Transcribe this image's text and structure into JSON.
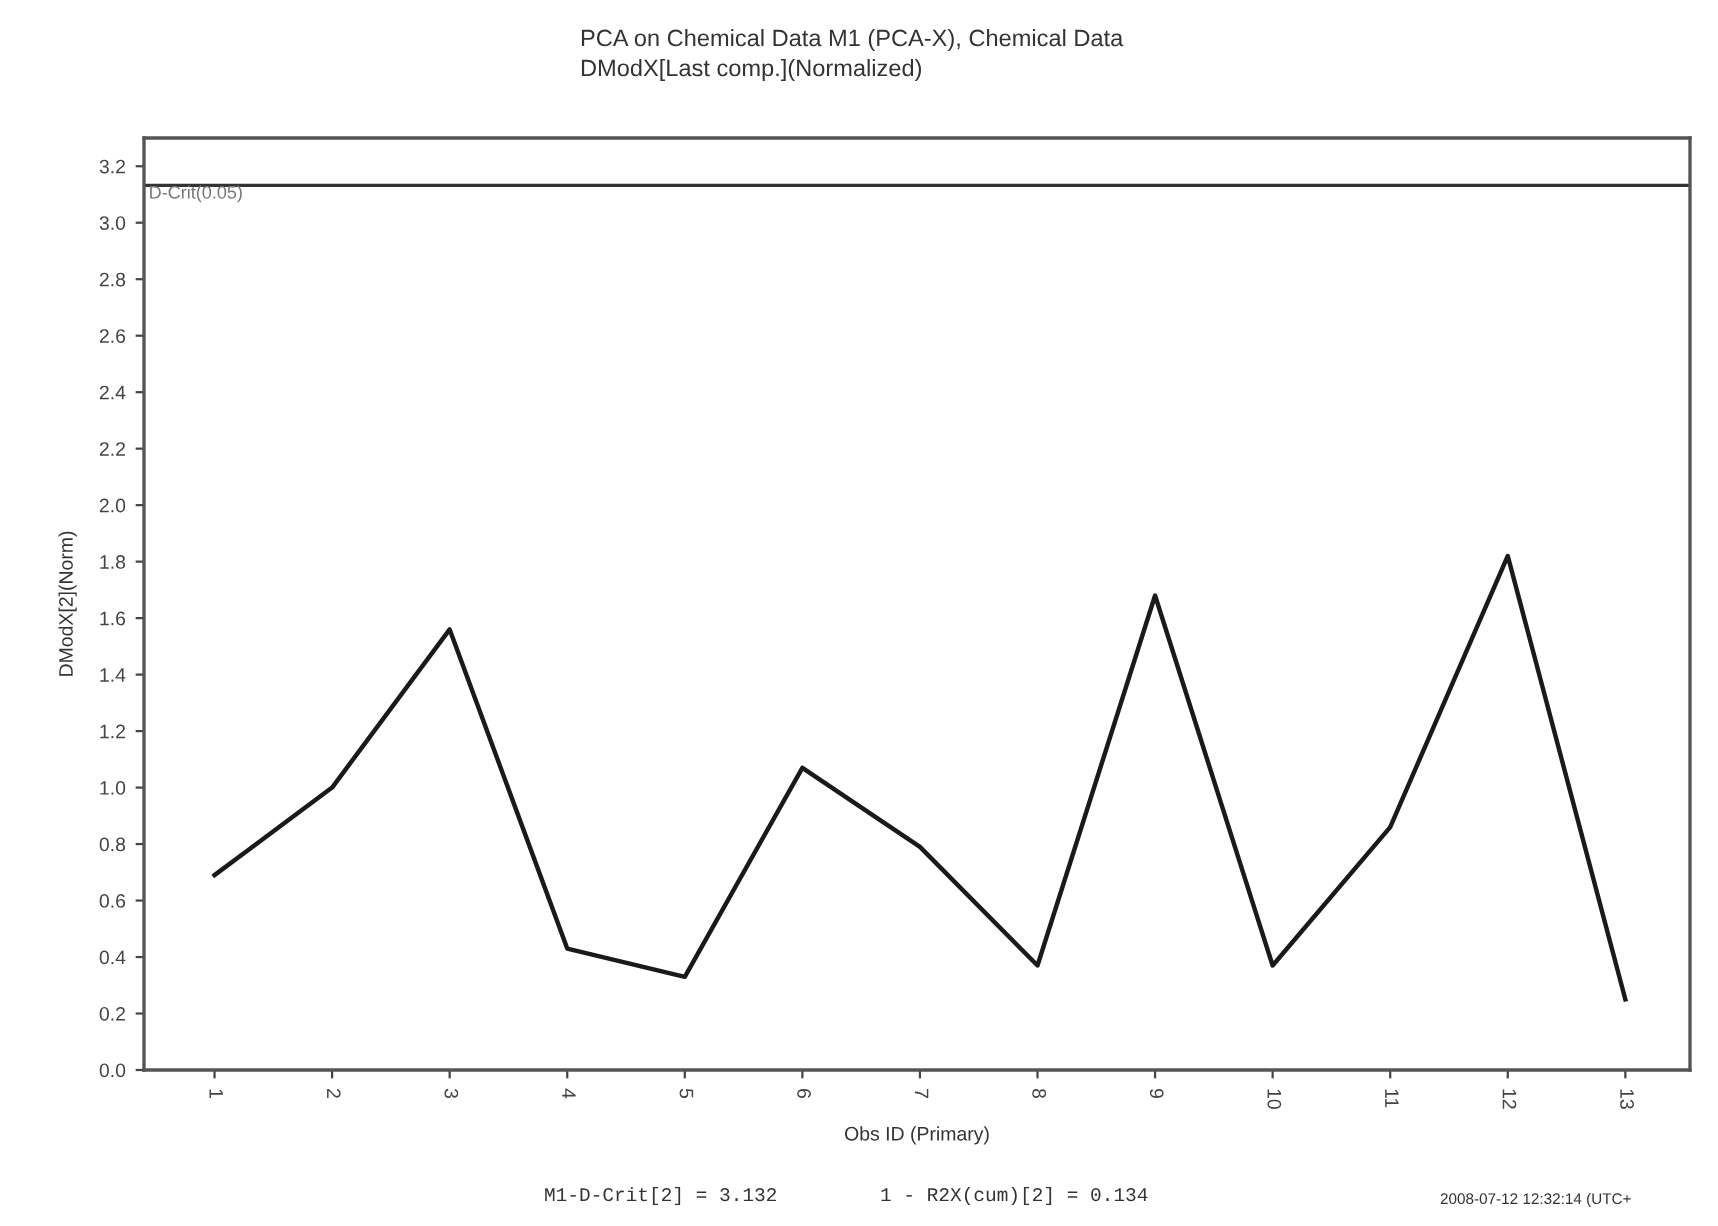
{
  "chart_data": {
    "type": "line",
    "title": "PCA on Chemical Data M1 (PCA-X), Chemical Data",
    "subtitle": "DModX[Last comp.](Normalized)",
    "xlabel": "Obs ID (Primary)",
    "ylabel": "DModX[2](Norm)",
    "categories": [
      "1",
      "2",
      "3",
      "4",
      "5",
      "6",
      "7",
      "8",
      "9",
      "10",
      "11",
      "12",
      "13"
    ],
    "series": [
      {
        "color": "#1a1a1a",
        "values": [
          0.69,
          1.0,
          1.56,
          0.43,
          0.33,
          1.07,
          0.79,
          0.37,
          1.68,
          0.37,
          0.86,
          1.82,
          0.25
        ]
      }
    ],
    "ylim": [
      0,
      3.3
    ],
    "yticks": [
      {
        "value": 0,
        "label": "0.0"
      },
      0.2,
      0.4,
      0.6,
      0.8,
      {
        "value": 1,
        "label": "1.0"
      },
      1.2,
      1.4,
      1.6,
      1.8,
      {
        "value": 2,
        "label": "2.0"
      },
      2.2,
      2.4,
      2.6,
      2.8,
      {
        "value": 3,
        "label": "3.0"
      },
      3.2
    ],
    "ref_lines": [
      {
        "axis": "y",
        "value": 3.132,
        "label": "D-Crit(0.05)",
        "color": "#333333"
      }
    ],
    "annotations": [
      "M1-D-Crit[2] = 3.132",
      "1 - R2X(cum)[2] = 0.134",
      "2008-07-12 12:32:14 (UTC+"
    ],
    "grid": false,
    "legend": false,
    "marker": "none",
    "line_style": "solid"
  }
}
